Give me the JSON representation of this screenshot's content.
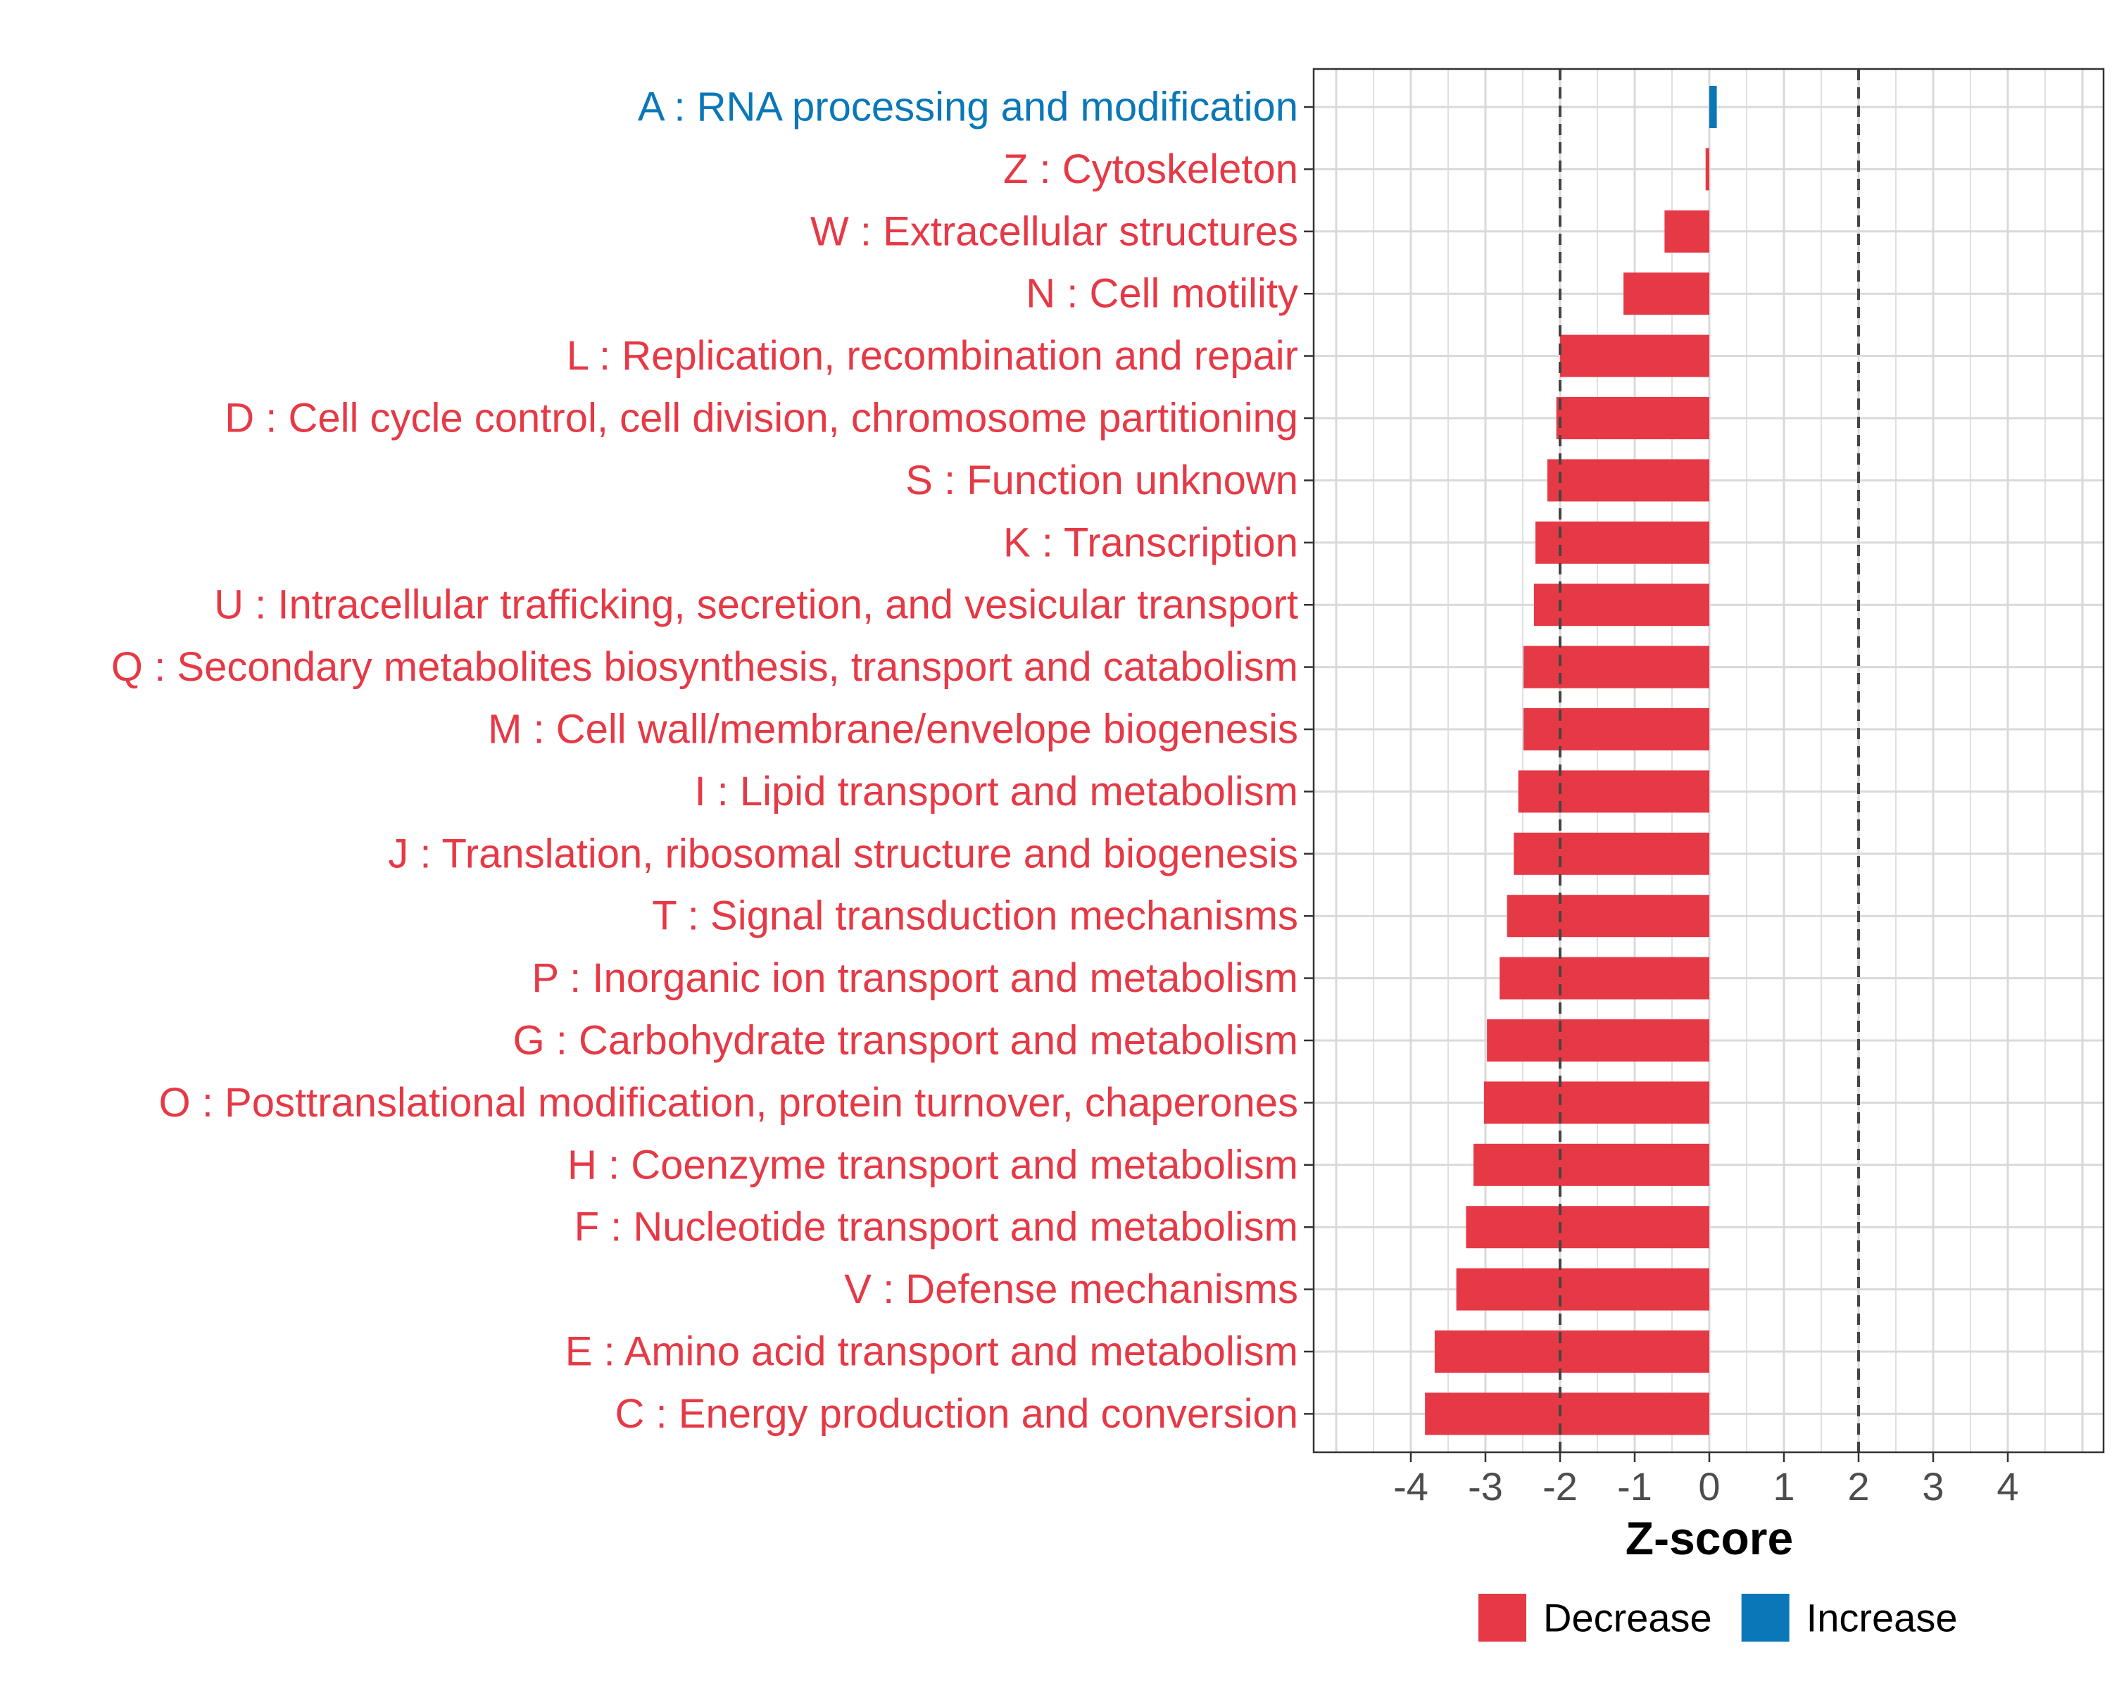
{
  "chart_data": {
    "type": "bar",
    "orientation": "horizontal",
    "xlabel": "Z-score",
    "ylabel": "",
    "xlim": [
      -5.2,
      5.4
    ],
    "xticks": [
      -4,
      -3,
      -2,
      -1,
      0,
      1,
      2,
      3,
      4
    ],
    "xtick_labels": [
      "-4",
      "-3",
      "-2",
      "-1",
      "0",
      "1",
      "2",
      "3",
      "4"
    ],
    "reference_lines": [
      -2,
      2
    ],
    "grid": true,
    "legend_position": "bottom",
    "legend": [
      {
        "label": "Decrease",
        "color": "#E63946"
      },
      {
        "label": "Increase",
        "color": "#0A78B8"
      }
    ],
    "categories": [
      {
        "label": "A : RNA processing and modification",
        "value": 0.1,
        "direction": "Increase"
      },
      {
        "label": "Z : Cytoskeleton",
        "value": -0.05,
        "direction": "Decrease"
      },
      {
        "label": "W : Extracellular structures",
        "value": -0.6,
        "direction": "Decrease"
      },
      {
        "label": "N : Cell motility",
        "value": -1.15,
        "direction": "Decrease"
      },
      {
        "label": "L : Replication, recombination and repair",
        "value": -2.0,
        "direction": "Decrease"
      },
      {
        "label": "D : Cell cycle control, cell division, chromosome partitioning",
        "value": -2.05,
        "direction": "Decrease"
      },
      {
        "label": "S : Function unknown",
        "value": -2.17,
        "direction": "Decrease"
      },
      {
        "label": "K : Transcription",
        "value": -2.33,
        "direction": "Decrease"
      },
      {
        "label": "U : Intracellular trafficking, secretion, and vesicular transport",
        "value": -2.35,
        "direction": "Decrease"
      },
      {
        "label": "Q : Secondary metabolites biosynthesis, transport and catabolism",
        "value": -2.49,
        "direction": "Decrease"
      },
      {
        "label": "M : Cell wall/membrane/envelope biogenesis",
        "value": -2.49,
        "direction": "Decrease"
      },
      {
        "label": "I : Lipid transport and metabolism",
        "value": -2.56,
        "direction": "Decrease"
      },
      {
        "label": "J : Translation, ribosomal structure and biogenesis",
        "value": -2.62,
        "direction": "Decrease"
      },
      {
        "label": "T : Signal transduction mechanisms",
        "value": -2.71,
        "direction": "Decrease"
      },
      {
        "label": "P : Inorganic ion transport and metabolism",
        "value": -2.81,
        "direction": "Decrease"
      },
      {
        "label": "G : Carbohydrate transport and metabolism",
        "value": -2.98,
        "direction": "Decrease"
      },
      {
        "label": "O : Posttranslational modification, protein turnover, chaperones",
        "value": -3.02,
        "direction": "Decrease"
      },
      {
        "label": "H : Coenzyme transport and metabolism",
        "value": -3.16,
        "direction": "Decrease"
      },
      {
        "label": "F : Nucleotide transport and metabolism",
        "value": -3.26,
        "direction": "Decrease"
      },
      {
        "label": "V : Defense mechanisms",
        "value": -3.39,
        "direction": "Decrease"
      },
      {
        "label": "E : Amino acid transport and metabolism",
        "value": -3.68,
        "direction": "Decrease"
      },
      {
        "label": "C : Energy production and conversion",
        "value": -3.81,
        "direction": "Decrease"
      }
    ]
  }
}
